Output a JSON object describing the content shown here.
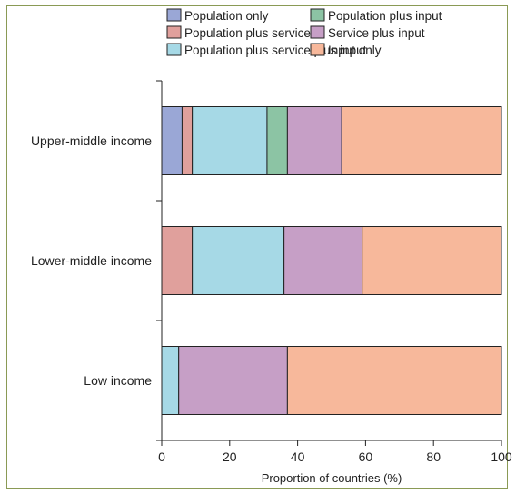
{
  "chart_data": {
    "type": "bar",
    "orientation": "horizontal",
    "stacked": true,
    "xlabel": "Proportion of countries (%)",
    "ylabel": "",
    "xlim": [
      0,
      100
    ],
    "xticks": [
      0,
      20,
      40,
      60,
      80,
      100
    ],
    "categories": [
      "Upper-middle income",
      "Lower-middle income",
      "Low income"
    ],
    "legend_position": "top",
    "grid": false,
    "series": [
      {
        "name": "Population only",
        "color": "#9aa7d6",
        "values": [
          6,
          0,
          0
        ]
      },
      {
        "name": "Population plus service",
        "color": "#e0a09c",
        "values": [
          3,
          9,
          0
        ]
      },
      {
        "name": "Population plus service plus input",
        "color": "#a6d9e6",
        "values": [
          22,
          27,
          5
        ]
      },
      {
        "name": "Population plus input",
        "color": "#8cc4a4",
        "values": [
          6,
          0,
          0
        ]
      },
      {
        "name": "Service plus input",
        "color": "#c69fc6",
        "values": [
          16,
          23,
          32
        ]
      },
      {
        "name": "Input only",
        "color": "#f7b89b",
        "values": [
          47,
          41,
          63
        ]
      }
    ],
    "legend_order": [
      "Population only",
      "Population plus input",
      "Population plus service",
      "Service plus input",
      "Population plus service plus input",
      "Input only"
    ]
  }
}
